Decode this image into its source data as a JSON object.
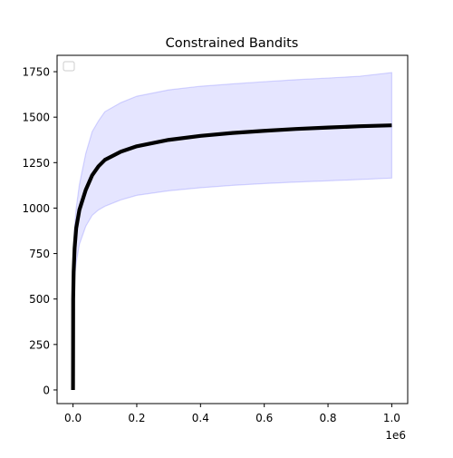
{
  "chart_data": {
    "type": "line",
    "title": "Constrained Bandits",
    "xlabel": "",
    "ylabel": "",
    "x_scale_label": "1e6",
    "xlim": [
      -0.05,
      1.05
    ],
    "ylim": [
      -75,
      1840
    ],
    "x_tick_labels": [
      "0.0",
      "0.2",
      "0.4",
      "0.6",
      "0.8",
      "1.0"
    ],
    "x_ticks": [
      0.0,
      0.2,
      0.4,
      0.6,
      0.8,
      1.0
    ],
    "y_tick_labels": [
      "0",
      "250",
      "500",
      "750",
      "1000",
      "1250",
      "1500",
      "1750"
    ],
    "y_ticks": [
      0,
      250,
      500,
      750,
      1000,
      1250,
      1500,
      1750
    ],
    "grid": false,
    "legend": {
      "location": "top-left",
      "entries": []
    },
    "colors": {
      "line": "#000000",
      "band_fill": "#0000ff",
      "band_edge": "#0000ff"
    },
    "series": {
      "x": [
        0.0,
        0.0005,
        0.002,
        0.005,
        0.01,
        0.02,
        0.04,
        0.06,
        0.08,
        0.1,
        0.15,
        0.2,
        0.3,
        0.4,
        0.5,
        0.6,
        0.7,
        0.8,
        0.9,
        1.0
      ],
      "mean": [
        0,
        500,
        650,
        780,
        890,
        990,
        1100,
        1180,
        1230,
        1265,
        1310,
        1340,
        1375,
        1397,
        1413,
        1425,
        1435,
        1443,
        1450,
        1455
      ],
      "upper": [
        0,
        620,
        800,
        900,
        1000,
        1130,
        1300,
        1420,
        1480,
        1530,
        1580,
        1615,
        1650,
        1670,
        1683,
        1695,
        1706,
        1715,
        1725,
        1745
      ],
      "lower": [
        0,
        380,
        500,
        620,
        700,
        800,
        900,
        960,
        990,
        1010,
        1045,
        1070,
        1095,
        1112,
        1125,
        1135,
        1143,
        1150,
        1157,
        1165
      ]
    }
  }
}
